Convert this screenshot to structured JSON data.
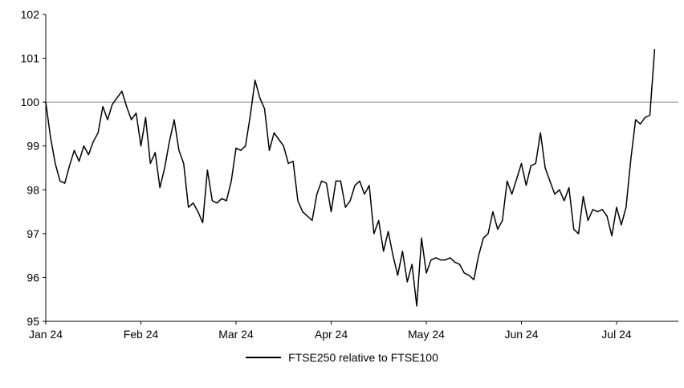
{
  "page": {
    "background": "#ffffff"
  },
  "chart_data": {
    "type": "line",
    "title": "",
    "xlabel": "",
    "ylabel": "",
    "ylim": [
      95,
      102
    ],
    "yticks": [
      95,
      96,
      97,
      98,
      99,
      100,
      101,
      102
    ],
    "xticks": [
      "Jan 24",
      "Feb 24",
      "Mar 24",
      "Apr 24",
      "May 24",
      "Jun 24",
      "Jul 24"
    ],
    "points_per_month": 20,
    "x_axis_max_index": 133,
    "reference_line": 100,
    "grid": "off",
    "legend_position": "bottom-center",
    "colors": {
      "series": "#000000",
      "reference": "#8c8c8c",
      "axis": "#000000",
      "text": "#000000"
    },
    "series": [
      {
        "name": "FTSE250 relative to FTSE100",
        "color": "#000000",
        "values": [
          100.0,
          99.2,
          98.6,
          98.2,
          98.15,
          98.55,
          98.9,
          98.65,
          99.0,
          98.8,
          99.1,
          99.3,
          99.9,
          99.6,
          99.95,
          100.1,
          100.25,
          99.9,
          99.6,
          99.75,
          99.0,
          99.65,
          98.6,
          98.85,
          98.05,
          98.5,
          99.1,
          99.6,
          98.9,
          98.6,
          97.6,
          97.7,
          97.5,
          97.25,
          98.45,
          97.75,
          97.7,
          97.8,
          97.75,
          98.2,
          98.95,
          98.9,
          99.0,
          99.7,
          100.5,
          100.1,
          99.85,
          98.9,
          99.3,
          99.15,
          99.0,
          98.6,
          98.65,
          97.75,
          97.5,
          97.4,
          97.3,
          97.9,
          98.2,
          98.15,
          97.5,
          98.2,
          98.2,
          97.6,
          97.75,
          98.1,
          98.2,
          97.9,
          98.1,
          97.0,
          97.3,
          96.6,
          97.05,
          96.5,
          96.05,
          96.6,
          95.9,
          96.3,
          95.35,
          96.9,
          96.1,
          96.4,
          96.45,
          96.4,
          96.4,
          96.45,
          96.35,
          96.3,
          96.1,
          96.05,
          95.95,
          96.5,
          96.9,
          97.0,
          97.5,
          97.1,
          97.3,
          98.2,
          97.9,
          98.25,
          98.6,
          98.1,
          98.55,
          98.6,
          99.3,
          98.5,
          98.2,
          97.9,
          98.0,
          97.75,
          98.05,
          97.1,
          97.0,
          97.85,
          97.3,
          97.55,
          97.5,
          97.55,
          97.4,
          96.95,
          97.6,
          97.2,
          97.6,
          98.7,
          99.6,
          99.5,
          99.65,
          99.7,
          101.2
        ]
      }
    ]
  }
}
